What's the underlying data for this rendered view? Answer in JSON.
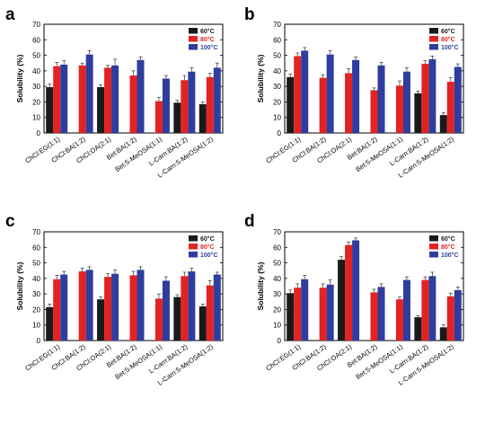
{
  "figure": {
    "colors": {
      "series_60": "#1a1a1a",
      "series_80": "#e32222",
      "series_100": "#2e3d9e"
    }
  },
  "chart_data": [
    {
      "type": "bar",
      "panel": "a",
      "ylabel": "Solubility (%)",
      "ylim": [
        0,
        70
      ],
      "yticks": [
        "0",
        "10",
        "20",
        "30",
        "40",
        "50",
        "60",
        "70"
      ],
      "legend_position": "top-right",
      "categories": [
        "ChCl:EG(1:1)",
        "ChCl:BA(1:2)",
        "ChCl:OA(2:1)",
        "Bet:BA(1:2)",
        "Bet:5-MeOSA(1:1)",
        "L-Carn:BA(1:2)",
        "L-Carn:5-MeOSA(1:2)"
      ],
      "series": [
        {
          "name": "60°C",
          "values": [
            29.5,
            null,
            29.5,
            null,
            null,
            19.5,
            18.5
          ],
          "errors": [
            2.0,
            0,
            1.5,
            0,
            0,
            1.5,
            1.5
          ]
        },
        {
          "name": "80°C",
          "values": [
            43,
            43.5,
            42,
            37,
            20.5,
            34,
            36
          ],
          "errors": [
            2.5,
            1.5,
            1.5,
            3.0,
            2.5,
            3.0,
            2.5
          ]
        },
        {
          "name": "100°C",
          "values": [
            44,
            50.5,
            43.5,
            47,
            35,
            39.5,
            42
          ],
          "errors": [
            2.5,
            2.5,
            4.0,
            2.0,
            2.0,
            2.5,
            3.0
          ]
        }
      ]
    },
    {
      "type": "bar",
      "panel": "b",
      "ylabel": "Solubility (%)",
      "ylim": [
        0,
        70
      ],
      "yticks": [
        "0",
        "10",
        "20",
        "30",
        "40",
        "50",
        "60",
        "70"
      ],
      "legend_position": "top-right",
      "categories": [
        "ChCl:EG(1:1)",
        "ChCl:BA(1:2)",
        "ChCl:OA(2:1)",
        "Bet:BA(1:2)",
        "Bet:5-MeOSA(1:1)",
        "L-Carn:BA(1:2)",
        "L-Carn:5-MeOSA(1:2)"
      ],
      "series": [
        {
          "name": "60°C",
          "values": [
            36,
            null,
            null,
            null,
            null,
            25.5,
            11.5
          ],
          "errors": [
            2.0,
            0,
            0,
            0,
            0,
            1.5,
            1.5
          ]
        },
        {
          "name": "80°C",
          "values": [
            49.5,
            35.5,
            38.5,
            27.5,
            30.5,
            44.5,
            33
          ],
          "errors": [
            2.0,
            2.0,
            3.0,
            1.5,
            3.0,
            2.0,
            2.5
          ]
        },
        {
          "name": "100°C",
          "values": [
            53,
            50.5,
            47,
            43.5,
            39.5,
            47.5,
            42.5
          ],
          "errors": [
            2.0,
            2.5,
            2.0,
            2.0,
            2.5,
            2.0,
            2.0
          ]
        }
      ]
    },
    {
      "type": "bar",
      "panel": "c",
      "ylabel": "Solubility (%)",
      "ylim": [
        0,
        70
      ],
      "yticks": [
        "0",
        "10",
        "20",
        "30",
        "40",
        "50",
        "60",
        "70"
      ],
      "legend_position": "top-right",
      "categories": [
        "ChCl:EG(1:1)",
        "ChCl:BA(1:2)",
        "ChCl:OA(2:1)",
        "Bet:BA(1:2)",
        "Bet:5-MeOSA(1:1)",
        "L-Carn:BA(1:2)",
        "L-Carn:5-MeOSA(1:2)"
      ],
      "series": [
        {
          "name": "60°C",
          "values": [
            21.5,
            null,
            26.5,
            null,
            null,
            28,
            22
          ],
          "errors": [
            2.0,
            0,
            1.5,
            0,
            0,
            1.5,
            1.5
          ]
        },
        {
          "name": "80°C",
          "values": [
            39.5,
            44.5,
            41,
            42,
            27,
            41.5,
            35.5
          ],
          "errors": [
            2.5,
            2.0,
            2.0,
            2.5,
            3.0,
            2.5,
            3.0
          ]
        },
        {
          "name": "100°C",
          "values": [
            42.5,
            45.5,
            43,
            45.5,
            38.5,
            44.5,
            42.5
          ],
          "errors": [
            2.0,
            2.0,
            2.5,
            2.0,
            2.5,
            2.0,
            1.5
          ]
        }
      ]
    },
    {
      "type": "bar",
      "panel": "d",
      "ylabel": "Solubility (%)",
      "ylim": [
        0,
        70
      ],
      "yticks": [
        "0",
        "10",
        "20",
        "30",
        "40",
        "50",
        "60",
        "70"
      ],
      "legend_position": "top-right",
      "categories": [
        "ChCl:EG(1:1)",
        "ChCl:BA(1:2)",
        "ChCl:OA(2:1)",
        "Bet:BA(1:2)",
        "Bet:5-MeOSA(1:1)",
        "L-Carn:BA(1:2)",
        "L-Carn:5-MeOSA(1:2)"
      ],
      "series": [
        {
          "name": "60°C",
          "values": [
            30.5,
            null,
            52,
            null,
            null,
            15,
            8.5
          ],
          "errors": [
            2.0,
            0,
            2.0,
            0,
            0,
            1.0,
            1.5
          ]
        },
        {
          "name": "80°C",
          "values": [
            34,
            34,
            61.5,
            31,
            26.5,
            39,
            28.5
          ],
          "errors": [
            2.5,
            2.5,
            2.0,
            2.0,
            1.5,
            2.0,
            2.0
          ]
        },
        {
          "name": "100°C",
          "values": [
            39.5,
            36,
            64.5,
            34.5,
            39,
            41.5,
            32.5
          ],
          "errors": [
            2.5,
            3.0,
            1.5,
            2.0,
            2.0,
            2.5,
            2.0
          ]
        }
      ]
    }
  ]
}
